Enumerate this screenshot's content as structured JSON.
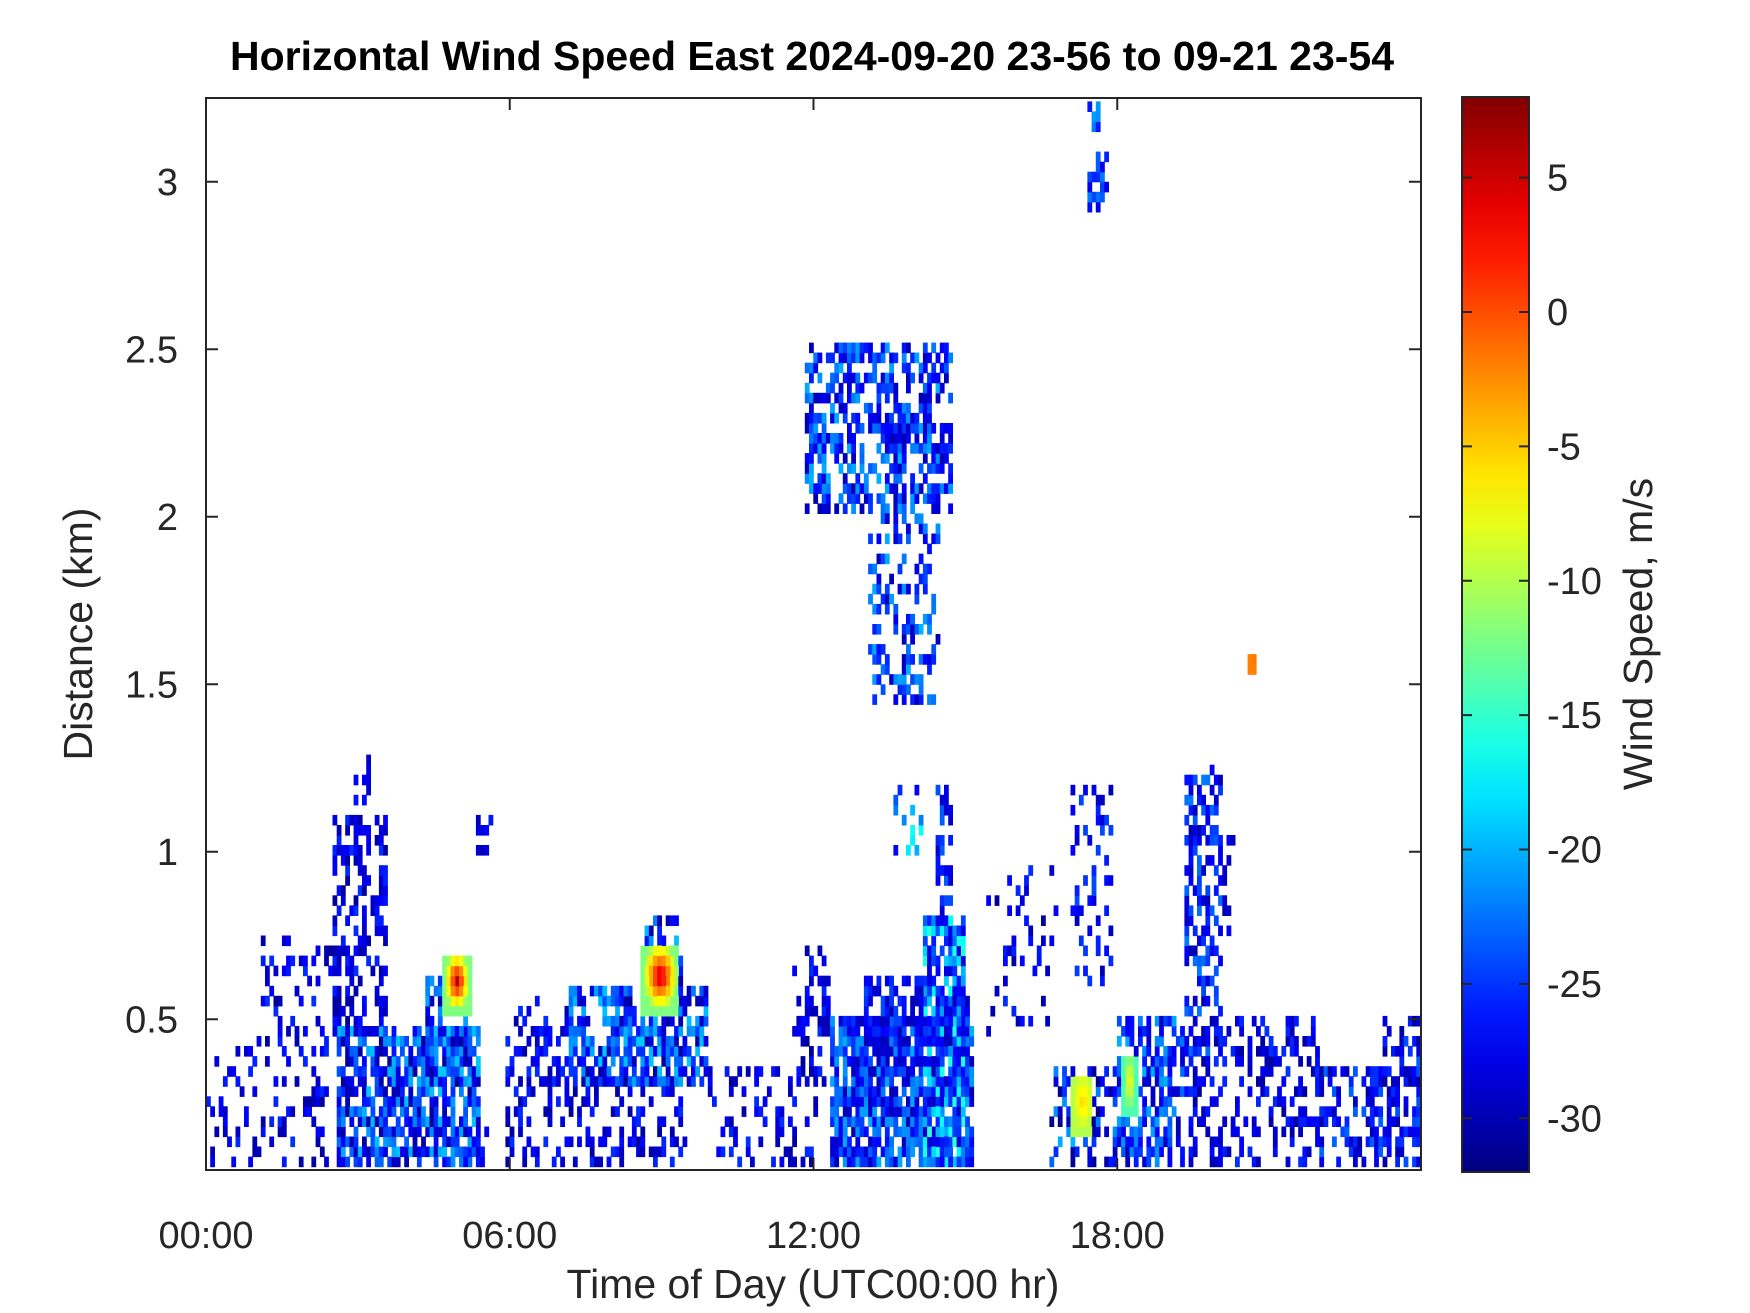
{
  "chart_data": {
    "type": "heatmap",
    "title": "Horizontal Wind Speed East 2024-09-20 23-56 to 09-21 23-54",
    "xlabel": "Time of Day (UTC00:00 hr)",
    "ylabel": "Distance (km)",
    "colorbar_label": "Wind Speed, m/s",
    "xlim": [
      0,
      24
    ],
    "ylim": [
      0.05,
      3.25
    ],
    "clim": [
      -32,
      8
    ],
    "colormap": "jet",
    "grid": false,
    "x_ticks": [
      {
        "value": 0,
        "label": "00:00"
      },
      {
        "value": 6,
        "label": "06:00"
      },
      {
        "value": 12,
        "label": "12:00"
      },
      {
        "value": 18,
        "label": "18:00"
      }
    ],
    "y_ticks": [
      {
        "value": 0.5,
        "label": "0.5"
      },
      {
        "value": 1,
        "label": "1"
      },
      {
        "value": 1.5,
        "label": "1.5"
      },
      {
        "value": 2,
        "label": "2"
      },
      {
        "value": 2.5,
        "label": "2.5"
      },
      {
        "value": 3,
        "label": "3"
      }
    ],
    "colorbar_ticks": [
      {
        "value": 5,
        "label": "5"
      },
      {
        "value": 0,
        "label": "0"
      },
      {
        "value": -5,
        "label": "-5"
      },
      {
        "value": -10,
        "label": "-10"
      },
      {
        "value": -15,
        "label": "-15"
      },
      {
        "value": -20,
        "label": "-20"
      },
      {
        "value": -25,
        "label": "-25"
      },
      {
        "value": -30,
        "label": "-30"
      }
    ],
    "clusters": [
      {
        "t0": 0.0,
        "t1": 2.4,
        "h0": 0.05,
        "h1": 0.4,
        "d": 0.25,
        "v0": -28,
        "vr": 3
      },
      {
        "t0": 1.0,
        "t1": 2.6,
        "h0": 0.4,
        "h1": 0.75,
        "d": 0.25,
        "v0": -28,
        "vr": 3
      },
      {
        "t0": 2.6,
        "t1": 5.4,
        "h0": 0.05,
        "h1": 0.45,
        "d": 0.72,
        "v0": -25,
        "vr": 6
      },
      {
        "t0": 2.5,
        "t1": 3.5,
        "h0": 0.45,
        "h1": 1.1,
        "d": 0.45,
        "v0": -28,
        "vr": 3
      },
      {
        "t0": 2.9,
        "t1": 3.2,
        "h0": 1.0,
        "h1": 1.28,
        "d": 0.4,
        "v0": -28,
        "vr": 2
      },
      {
        "t0": 4.3,
        "t1": 5.2,
        "h0": 0.3,
        "h1": 0.62,
        "d": 0.6,
        "v0": -25,
        "vr": 6
      },
      {
        "t0": 5.1,
        "t1": 5.6,
        "h0": 0.05,
        "h1": 0.15,
        "d": 0.3,
        "v0": -28,
        "vr": 2
      },
      {
        "t0": 5.3,
        "t1": 5.6,
        "h0": 1.0,
        "h1": 1.12,
        "d": 0.5,
        "v0": -28,
        "vr": 2
      },
      {
        "t0": 5.9,
        "t1": 7.2,
        "h0": 0.05,
        "h1": 0.55,
        "d": 0.35,
        "v0": -28,
        "vr": 3
      },
      {
        "t0": 7.2,
        "t1": 9.9,
        "h0": 0.3,
        "h1": 0.6,
        "d": 0.65,
        "v0": -25,
        "vr": 6
      },
      {
        "t0": 8.7,
        "t1": 9.4,
        "h0": 0.55,
        "h1": 0.8,
        "d": 0.5,
        "v0": -25,
        "vr": 6
      },
      {
        "t0": 7.2,
        "t1": 9.5,
        "h0": 0.05,
        "h1": 0.3,
        "d": 0.3,
        "v0": -28,
        "vr": 3
      },
      {
        "t0": 9.9,
        "t1": 12.0,
        "h0": 0.05,
        "h1": 0.35,
        "d": 0.2,
        "v0": -28,
        "vr": 3
      },
      {
        "t0": 11.6,
        "t1": 12.3,
        "h0": 0.3,
        "h1": 0.7,
        "d": 0.35,
        "v0": -28,
        "vr": 3
      },
      {
        "t0": 12.3,
        "t1": 15.1,
        "h0": 0.05,
        "h1": 0.5,
        "d": 0.8,
        "v0": -25,
        "vr": 5
      },
      {
        "t0": 14.2,
        "t1": 15.0,
        "h0": 0.05,
        "h1": 0.8,
        "d": 0.7,
        "v0": -22,
        "vr": 7
      },
      {
        "t0": 13.0,
        "t1": 15.0,
        "h0": 0.35,
        "h1": 0.62,
        "d": 0.55,
        "v0": -27,
        "vr": 3
      },
      {
        "t0": 13.4,
        "t1": 14.1,
        "h0": 1.0,
        "h1": 1.2,
        "d": 0.25,
        "v0": -22,
        "vr": 6
      },
      {
        "t0": 14.4,
        "t1": 14.7,
        "h0": 0.75,
        "h1": 1.2,
        "d": 0.4,
        "v0": -26,
        "vr": 3
      },
      {
        "t0": 11.8,
        "t1": 14.7,
        "h0": 2.0,
        "h1": 2.5,
        "d": 0.55,
        "v0": -25,
        "vr": 5
      },
      {
        "t0": 13.1,
        "t1": 14.5,
        "h0": 1.45,
        "h1": 2.0,
        "d": 0.35,
        "v0": -25,
        "vr": 5
      },
      {
        "t0": 15.4,
        "t1": 16.8,
        "h0": 0.45,
        "h1": 0.95,
        "d": 0.2,
        "v0": -28,
        "vr": 3
      },
      {
        "t0": 16.7,
        "t1": 18.0,
        "h0": 0.05,
        "h1": 0.35,
        "d": 0.45,
        "v0": -26,
        "vr": 6
      },
      {
        "t0": 17.1,
        "t1": 17.9,
        "h0": 0.6,
        "h1": 1.2,
        "d": 0.3,
        "v0": -27,
        "vr": 3
      },
      {
        "t0": 17.4,
        "t1": 17.8,
        "h0": 2.9,
        "h1": 3.05,
        "d": 0.6,
        "v0": -25,
        "vr": 3
      },
      {
        "t0": 17.4,
        "t1": 17.6,
        "h0": 3.15,
        "h1": 3.25,
        "d": 0.8,
        "v0": -24,
        "vr": 3
      },
      {
        "t0": 18.0,
        "t1": 19.3,
        "h0": 0.05,
        "h1": 0.5,
        "d": 0.55,
        "v0": -25,
        "vr": 5
      },
      {
        "t0": 19.3,
        "t1": 20.0,
        "h0": 0.4,
        "h1": 1.25,
        "d": 0.5,
        "v0": -26,
        "vr": 4
      },
      {
        "t0": 20.1,
        "t1": 20.3,
        "h0": 0.75,
        "h1": 1.05,
        "d": 0.45,
        "v0": -28,
        "vr": 2
      },
      {
        "t0": 19.3,
        "t1": 22.0,
        "h0": 0.05,
        "h1": 0.5,
        "d": 0.35,
        "v0": -28,
        "vr": 3
      },
      {
        "t0": 22.0,
        "t1": 24.0,
        "h0": 0.05,
        "h1": 0.35,
        "d": 0.45,
        "v0": -27,
        "vr": 4
      },
      {
        "t0": 23.2,
        "t1": 24.0,
        "h0": 0.3,
        "h1": 0.5,
        "d": 0.4,
        "v0": -27,
        "vr": 4
      }
    ],
    "hotspots": [
      {
        "t0": 4.7,
        "t1": 5.2,
        "h0": 0.5,
        "h1": 0.68,
        "v": [
          -12,
          6
        ]
      },
      {
        "t0": 8.6,
        "t1": 9.3,
        "h0": 0.52,
        "h1": 0.73,
        "v": [
          -12,
          6
        ]
      },
      {
        "t0": 17.1,
        "t1": 17.5,
        "h0": 0.15,
        "h1": 0.33,
        "v": [
          -10,
          -5
        ]
      },
      {
        "t0": 18.1,
        "t1": 18.35,
        "h0": 0.22,
        "h1": 0.4,
        "v": [
          -14,
          -6
        ]
      },
      {
        "t0": 20.6,
        "t1": 20.7,
        "h0": 1.52,
        "h1": 1.57,
        "v": [
          -2,
          -1
        ]
      }
    ]
  }
}
